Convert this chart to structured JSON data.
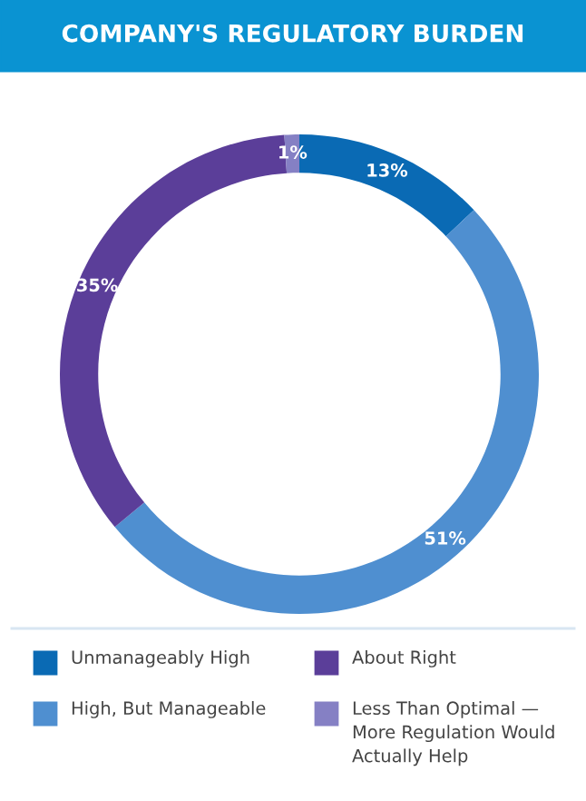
{
  "chart_data": {
    "type": "donut",
    "title": "COMPANY'S REGULATORY BURDEN",
    "categories": [
      "Unmanageably High",
      "High, But Manageable",
      "About Right",
      "Less Than Optimal — More Regulation Would Actually Help"
    ],
    "values": [
      13,
      51,
      35,
      1
    ],
    "colors": [
      "#0a6ab4",
      "#4f8fd0",
      "#5b3e99",
      "#8580c4"
    ],
    "value_labels": [
      "13%",
      "51%",
      "35%",
      "1%"
    ],
    "legend": "bottom"
  }
}
